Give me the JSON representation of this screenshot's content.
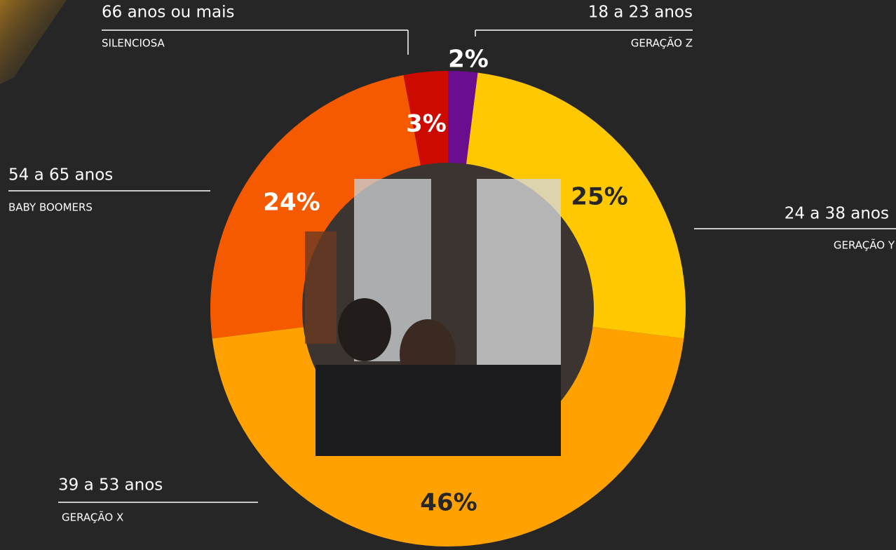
{
  "chart_data": {
    "type": "pie",
    "categories": [
      "18 a 23 anos",
      "24 a 38 anos",
      "39 a 53 anos",
      "54 a 65 anos",
      "66 anos ou mais"
    ],
    "generations": [
      "GERAÇÃO Z",
      "GERAÇÃO Y",
      "GERAÇÃO X",
      "BABY BOOMERS",
      "SILENCIOSA"
    ],
    "values": [
      2,
      25,
      46,
      24,
      3
    ],
    "value_labels": [
      "2%",
      "25%",
      "46%",
      "24%",
      "3%"
    ],
    "colors": [
      "#6b0d8f",
      "#ffc800",
      "#ffa100",
      "#f65a00",
      "#cc0a00"
    ],
    "donut": true
  }
}
